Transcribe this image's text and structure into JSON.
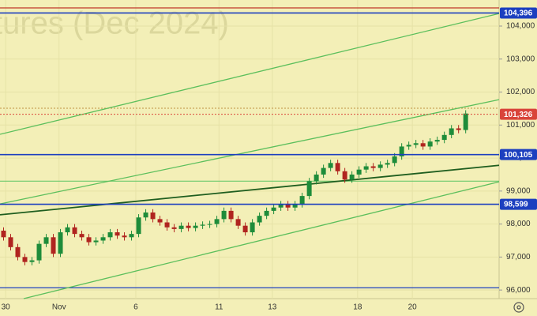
{
  "chart_data": {
    "type": "candlestick",
    "watermark": "tures (Dec 2024)",
    "open": [
      97800,
      97600,
      97300,
      97000,
      96850,
      96900,
      97400,
      97600,
      97100,
      97750,
      97900,
      97700,
      97600,
      97450,
      97500,
      97600,
      97750,
      97650,
      97600,
      97700,
      98200,
      98350,
      98150,
      98050,
      97900,
      97850,
      97950,
      97880,
      97950,
      97980,
      98000,
      98150,
      98400,
      98150,
      97950,
      97750,
      98050,
      98250,
      98400,
      98500,
      98600,
      98500,
      98600,
      98850,
      99300,
      99500,
      99700,
      99850,
      99600,
      99350,
      99500,
      99650,
      99750,
      99700,
      99800,
      99850,
      100050,
      100350,
      100400,
      100450,
      100350,
      100500,
      100550,
      100700,
      100900,
      100850
    ],
    "high": [
      97900,
      97700,
      97400,
      97100,
      97000,
      97500,
      97700,
      97700,
      97850,
      98000,
      98000,
      97800,
      97700,
      97600,
      97700,
      97850,
      97850,
      97750,
      97800,
      98300,
      98450,
      98450,
      98250,
      98150,
      98000,
      98050,
      98050,
      98050,
      98080,
      98100,
      98250,
      98500,
      98500,
      98250,
      98050,
      98150,
      98350,
      98500,
      98600,
      98700,
      98700,
      98700,
      98950,
      99400,
      99600,
      99800,
      99950,
      99950,
      99700,
      99600,
      99750,
      99850,
      99850,
      99900,
      99950,
      100150,
      100450,
      100500,
      100550,
      100550,
      100600,
      100650,
      100800,
      101000,
      101000,
      101450
    ],
    "low": [
      97500,
      97200,
      96900,
      96750,
      96750,
      96800,
      97300,
      97000,
      97000,
      97650,
      97600,
      97500,
      97350,
      97350,
      97400,
      97500,
      97550,
      97500,
      97500,
      97600,
      98100,
      98050,
      97950,
      97800,
      97750,
      97750,
      97780,
      97780,
      97850,
      97880,
      97900,
      98050,
      98050,
      97850,
      97650,
      97650,
      97950,
      98150,
      98300,
      98400,
      98400,
      98400,
      98500,
      98750,
      99200,
      99400,
      99600,
      99500,
      99250,
      99250,
      99400,
      99550,
      99600,
      99600,
      99700,
      99750,
      99950,
      100250,
      100300,
      100250,
      100250,
      100400,
      100450,
      100600,
      100750,
      100750
    ],
    "close": [
      97600,
      97300,
      97000,
      96850,
      96900,
      97400,
      97600,
      97100,
      97750,
      97900,
      97700,
      97600,
      97450,
      97500,
      97600,
      97750,
      97650,
      97600,
      97700,
      98200,
      98350,
      98150,
      98050,
      97900,
      97850,
      97950,
      97880,
      97950,
      97980,
      98000,
      98150,
      98400,
      98150,
      97950,
      97750,
      98050,
      98250,
      98400,
      98500,
      98600,
      98500,
      98600,
      98850,
      99300,
      99500,
      99700,
      99850,
      99600,
      99350,
      99500,
      99650,
      99750,
      99700,
      99800,
      99850,
      100050,
      100350,
      100400,
      100450,
      100350,
      100500,
      100550,
      100700,
      100900,
      100850,
      101350
    ],
    "up_color": "#1e8c3a",
    "down_color": "#b0241f",
    "xlim": [
      -0.5,
      69.7
    ],
    "xticks": [
      {
        "value": 0.3,
        "label": "30"
      },
      {
        "value": 7.8,
        "label": "Nov"
      },
      {
        "value": 18.6,
        "label": "6"
      },
      {
        "value": 30.3,
        "label": "11"
      },
      {
        "value": 37.8,
        "label": "13"
      },
      {
        "value": 49.8,
        "label": "18"
      },
      {
        "value": 57.5,
        "label": "20"
      }
    ],
    "ylim": [
      95740,
      104790
    ],
    "yticks": [
      {
        "value": 96000,
        "label": "96,000"
      },
      {
        "value": 97000,
        "label": "97,000"
      },
      {
        "value": 98000,
        "label": "98,000"
      },
      {
        "value": 99000,
        "label": "99,000"
      },
      {
        "value": 100000,
        "label": "100,000"
      },
      {
        "value": 101000,
        "label": "101,000"
      },
      {
        "value": 102000,
        "label": "102,000"
      },
      {
        "value": 103000,
        "label": "103,000"
      },
      {
        "value": 104000,
        "label": "104,000"
      }
    ],
    "grid": true,
    "levels": [
      {
        "value": 104396,
        "label": "104,396",
        "color": "#1c3fbf"
      },
      {
        "value": 101326,
        "label": "101,326",
        "color": "#d9443a",
        "dashed": true
      },
      {
        "value": 100105,
        "label": "100,105",
        "color": "#1c3fbf"
      },
      {
        "value": 98599,
        "label": "98,599",
        "color": "#1c3fbf"
      }
    ],
    "lines": [
      {
        "value": 104550,
        "color": "#c0392b"
      },
      {
        "value": 101510,
        "color": "#c9a35a",
        "dashed": true
      },
      {
        "value": 99300,
        "color": "#6cc96c"
      },
      {
        "value": 96070,
        "color": "#1c3fbf"
      }
    ],
    "trend_lines": [
      {
        "x": [
          -0.5,
          69.7
        ],
        "values": [
          100720,
          104380
        ],
        "color": "#5cbf5c"
      },
      {
        "x": [
          -0.5,
          69.7
        ],
        "values": [
          98610,
          101770
        ],
        "color": "#5cbf5c"
      },
      {
        "x": [
          2.83,
          69.7
        ],
        "values": [
          95740,
          99280
        ],
        "color": "#5cbf5c"
      },
      {
        "x": [
          -0.5,
          69.7
        ],
        "values": [
          98280,
          99780
        ],
        "color": "#1f5e1f"
      }
    ]
  }
}
